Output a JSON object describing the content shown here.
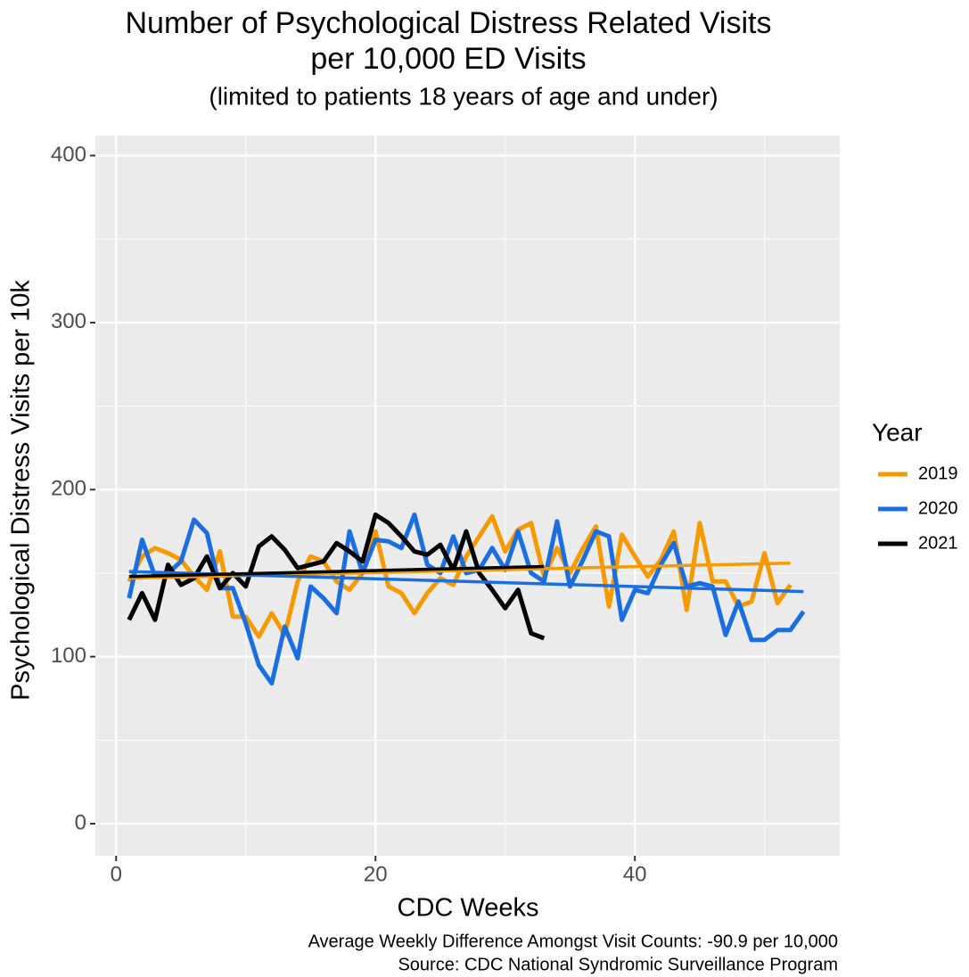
{
  "chart_data": {
    "type": "line",
    "title": [
      "Number of Psychological Distress Related Visits",
      "per 10,000 ED Visits"
    ],
    "subtitle": "(limited to patients 18 years of age and under)",
    "xlabel": "CDC Weeks",
    "ylabel": "Psychological Distress Visits per 10k",
    "caption": [
      "Average Weekly Difference Amongst Visit Counts: -90.9 per 10,000",
      "Source: CDC National Syndromic Surveillance Program"
    ],
    "legend_title": "Year",
    "legend": "right",
    "grid": true,
    "xlim": [
      -1.6,
      55.8
    ],
    "ylim": [
      -19.2,
      412
    ],
    "xticks": [
      0,
      20,
      40
    ],
    "yticks": [
      0,
      100,
      200,
      300,
      400
    ],
    "x_minor_grid": [
      10,
      30,
      50
    ],
    "y_minor_grid": [
      50,
      150,
      250,
      350
    ],
    "series": [
      {
        "name": "2019",
        "color": "#f59a00",
        "x": [
          1,
          2,
          3,
          4,
          5,
          6,
          7,
          8,
          9,
          10,
          11,
          12,
          13,
          14,
          15,
          16,
          17,
          18,
          19,
          20,
          21,
          22,
          23,
          24,
          25,
          26,
          27,
          28,
          29,
          30,
          31,
          32,
          33,
          34,
          35,
          36,
          37,
          38,
          39,
          40,
          41,
          42,
          43,
          44,
          45,
          46,
          47,
          48,
          49,
          50,
          51,
          52
        ],
        "values": [
          145,
          160,
          165,
          162,
          158,
          148,
          140,
          163,
          124,
          124,
          112,
          126,
          113,
          145,
          160,
          157,
          145,
          140,
          150,
          175,
          142,
          138,
          126,
          138,
          147,
          143,
          160,
          172,
          184,
          163,
          176,
          180,
          148,
          165,
          150,
          165,
          178,
          130,
          173,
          160,
          148,
          158,
          175,
          128,
          180,
          145,
          145,
          130,
          133,
          162,
          132,
          143
        ],
        "trend": {
          "x": [
            1,
            52
          ],
          "values": [
            147,
            156
          ]
        }
      },
      {
        "name": "2020",
        "color": "#1a6ee0",
        "x": [
          1,
          2,
          3,
          4,
          5,
          6,
          7,
          8,
          9,
          10,
          11,
          12,
          13,
          14,
          15,
          16,
          17,
          18,
          19,
          20,
          21,
          22,
          23,
          24,
          25,
          26,
          27,
          28,
          29,
          30,
          31,
          32,
          33,
          34,
          35,
          36,
          37,
          38,
          39,
          40,
          41,
          42,
          43,
          44,
          45,
          46,
          47,
          48,
          49,
          50,
          51,
          52,
          53
        ],
        "values": [
          135,
          170,
          148,
          150,
          157,
          182,
          174,
          141,
          141,
          120,
          95,
          84,
          118,
          99,
          142,
          135,
          126,
          175,
          150,
          170,
          169,
          165,
          185,
          155,
          150,
          172,
          150,
          152,
          165,
          152,
          175,
          150,
          145,
          181,
          142,
          158,
          175,
          172,
          122,
          140,
          138,
          155,
          168,
          142,
          144,
          142,
          113,
          133,
          110,
          110,
          116,
          116,
          127
        ],
        "trend": {
          "x": [
            1,
            53
          ],
          "values": [
            151,
            139
          ]
        }
      },
      {
        "name": "2021",
        "color": "#000000",
        "x": [
          1,
          2,
          3,
          4,
          5,
          6,
          7,
          8,
          9,
          10,
          11,
          12,
          13,
          14,
          15,
          16,
          17,
          18,
          19,
          20,
          21,
          22,
          23,
          24,
          25,
          26,
          27,
          28,
          29,
          30,
          31,
          32,
          33
        ],
        "values": [
          122,
          138,
          122,
          155,
          143,
          147,
          160,
          141,
          150,
          142,
          166,
          172,
          164,
          153,
          155,
          157,
          168,
          163,
          157,
          185,
          180,
          172,
          163,
          161,
          167,
          152,
          175,
          150,
          140,
          129,
          140,
          114,
          111
        ],
        "trend": {
          "x": [
            1,
            33
          ],
          "values": [
            148,
            154
          ]
        }
      }
    ]
  }
}
